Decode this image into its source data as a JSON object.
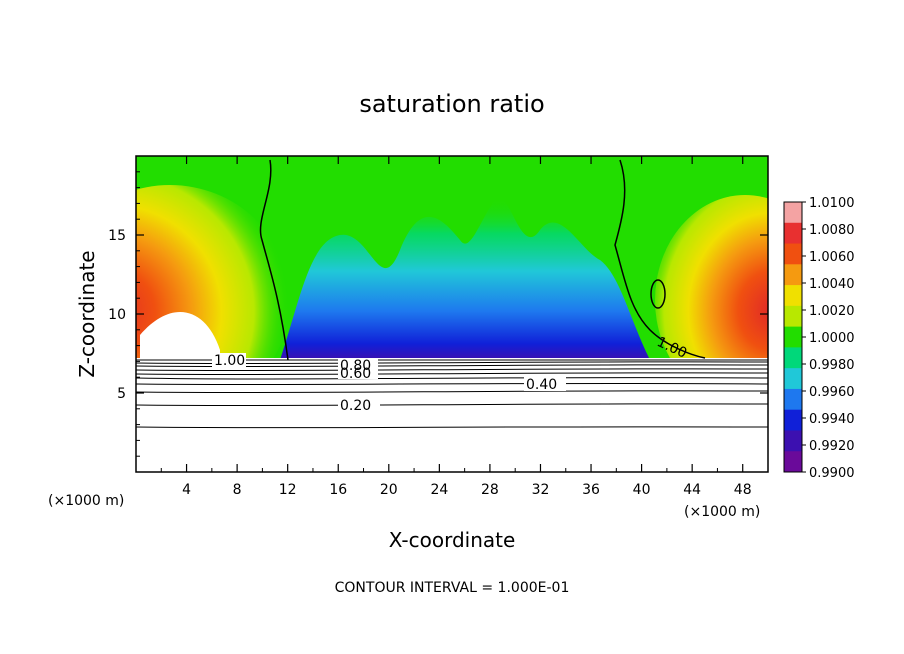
{
  "chart_data": {
    "type": "contour",
    "title": "saturation ratio",
    "xlabel": "X-coordinate",
    "ylabel": "Z-coordinate",
    "x_unit_left": "(×1000 m)",
    "x_unit_right": "(×1000 m)",
    "xlim": [
      0,
      50
    ],
    "ylim": [
      0,
      20
    ],
    "x_ticks": [
      "4",
      "8",
      "12",
      "16",
      "20",
      "24",
      "28",
      "32",
      "36",
      "40",
      "44",
      "48"
    ],
    "y_ticks": [
      "5",
      "10",
      "15"
    ],
    "colorbar": {
      "labels": [
        "1.0100",
        "1.0080",
        "1.0060",
        "1.0040",
        "1.0020",
        "1.0000",
        "0.9980",
        "0.9960",
        "0.9940",
        "0.9920",
        "0.9900"
      ],
      "colors": [
        "#f4a3a3",
        "#e83030",
        "#f05010",
        "#f59a10",
        "#f0e000",
        "#b8e800",
        "#22dd00",
        "#00d87a",
        "#20c8d8",
        "#1e78ef",
        "#1020d8",
        "#3c10b0",
        "#6a0a9a"
      ]
    },
    "contour_labels": [
      {
        "text": "1.00",
        "x": 7.5,
        "y": 7.2
      },
      {
        "text": "1.00",
        "x": 42.5,
        "y": 7.9
      },
      {
        "text": "0.80",
        "x": 17.5,
        "y": 7.0
      },
      {
        "text": "0.60",
        "x": 17.5,
        "y": 6.5
      },
      {
        "text": "0.40",
        "x": 32,
        "y": 5.6
      },
      {
        "text": "0.20",
        "x": 18.5,
        "y": 4.2
      }
    ],
    "footer": "CONTOUR INTERVAL = 1.000E-01"
  }
}
